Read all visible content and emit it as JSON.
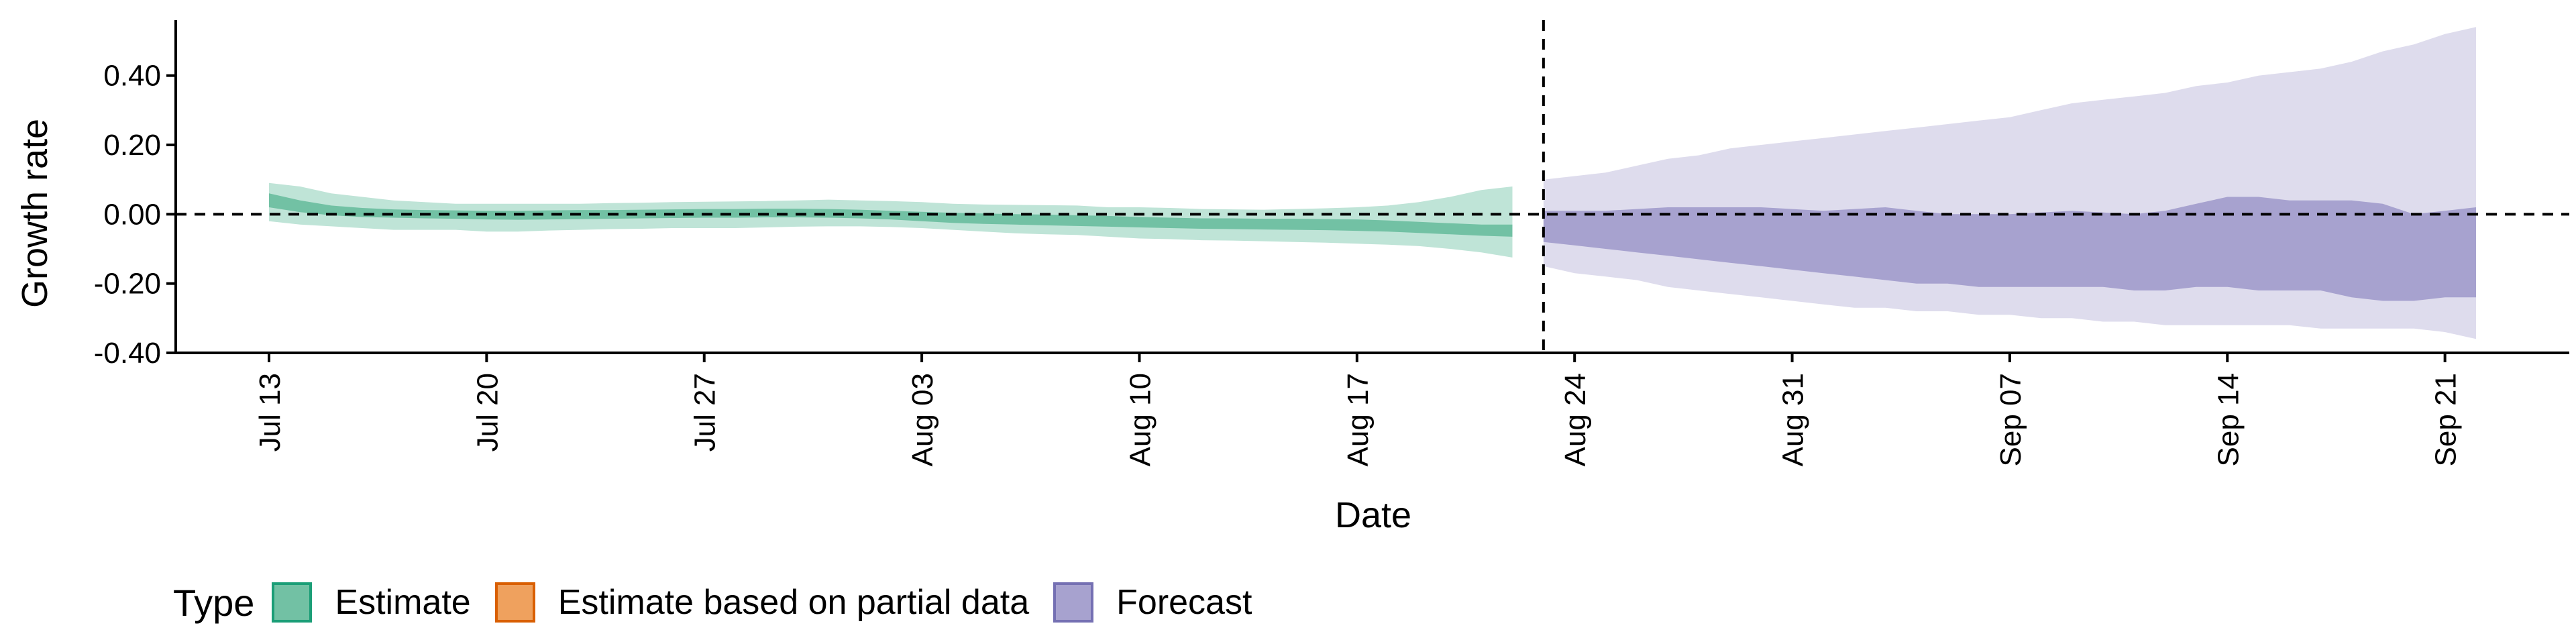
{
  "chart_data": {
    "type": "area",
    "ylabel": "Growth rate",
    "xlabel": "Date",
    "ylim": [
      -0.4,
      0.56
    ],
    "yticks": [
      "0.40",
      "0.20",
      "0.00",
      "-0.20",
      "-0.40"
    ],
    "ytick_values": [
      0.4,
      0.2,
      0.0,
      -0.2,
      -0.4
    ],
    "xlim": [
      "2020-07-10",
      "2020-09-25"
    ],
    "xticks": [
      "Jul 13",
      "Jul 20",
      "Jul 27",
      "Aug 03",
      "Aug 10",
      "Aug 17",
      "Aug 24",
      "Aug 31",
      "Sep 07",
      "Sep 14",
      "Sep 21"
    ],
    "xtick_dates": [
      "2020-07-13",
      "2020-07-20",
      "2020-07-27",
      "2020-08-03",
      "2020-08-10",
      "2020-08-17",
      "2020-08-24",
      "2020-08-31",
      "2020-09-07",
      "2020-09-14",
      "2020-09-21"
    ],
    "hline": 0,
    "vline": "2020-08-23",
    "grid": false,
    "legend_position": "bottom-left",
    "legend": {
      "title": "Type",
      "items": [
        {
          "label": "Estimate",
          "fill": "#72C1A4",
          "stroke": "#1B9E77"
        },
        {
          "label": "Estimate based on partial data",
          "fill": "#EFA15E",
          "stroke": "#D95F02"
        },
        {
          "label": "Forecast",
          "fill": "#A7A2CF",
          "stroke": "#7570B3"
        }
      ]
    },
    "series": [
      {
        "name": "Estimate",
        "outer_color": "#BFE4D7",
        "inner_color": "#72C1A4",
        "x": [
          "2020-07-13",
          "2020-07-14",
          "2020-07-15",
          "2020-07-16",
          "2020-07-17",
          "2020-07-18",
          "2020-07-19",
          "2020-07-20",
          "2020-07-21",
          "2020-07-22",
          "2020-07-23",
          "2020-07-24",
          "2020-07-25",
          "2020-07-26",
          "2020-07-27",
          "2020-07-28",
          "2020-07-29",
          "2020-07-30",
          "2020-07-31",
          "2020-08-01",
          "2020-08-02",
          "2020-08-03",
          "2020-08-04",
          "2020-08-05",
          "2020-08-06",
          "2020-08-07",
          "2020-08-08",
          "2020-08-09",
          "2020-08-10",
          "2020-08-11",
          "2020-08-12",
          "2020-08-13",
          "2020-08-14",
          "2020-08-15",
          "2020-08-16",
          "2020-08-17",
          "2020-08-18",
          "2020-08-19",
          "2020-08-20",
          "2020-08-21",
          "2020-08-22"
        ],
        "outer_upper": [
          0.09,
          0.08,
          0.06,
          0.05,
          0.04,
          0.035,
          0.03,
          0.03,
          0.03,
          0.03,
          0.03,
          0.032,
          0.033,
          0.035,
          0.036,
          0.037,
          0.038,
          0.04,
          0.042,
          0.04,
          0.038,
          0.035,
          0.03,
          0.028,
          0.027,
          0.026,
          0.025,
          0.02,
          0.02,
          0.018,
          0.015,
          0.014,
          0.013,
          0.015,
          0.017,
          0.02,
          0.025,
          0.035,
          0.05,
          0.07,
          0.08
        ],
        "outer_lower": [
          -0.02,
          -0.03,
          -0.035,
          -0.04,
          -0.045,
          -0.045,
          -0.045,
          -0.05,
          -0.05,
          -0.047,
          -0.045,
          -0.043,
          -0.042,
          -0.04,
          -0.04,
          -0.04,
          -0.038,
          -0.036,
          -0.035,
          -0.035,
          -0.037,
          -0.04,
          -0.045,
          -0.05,
          -0.055,
          -0.058,
          -0.06,
          -0.065,
          -0.07,
          -0.072,
          -0.075,
          -0.076,
          -0.078,
          -0.08,
          -0.082,
          -0.085,
          -0.088,
          -0.092,
          -0.1,
          -0.11,
          -0.125
        ],
        "inner_upper": [
          0.06,
          0.04,
          0.025,
          0.018,
          0.014,
          0.012,
          0.011,
          0.01,
          0.01,
          0.011,
          0.012,
          0.012,
          0.013,
          0.014,
          0.015,
          0.015,
          0.016,
          0.016,
          0.015,
          0.013,
          0.01,
          0.007,
          0.004,
          0.002,
          0.0,
          -0.001,
          -0.003,
          -0.005,
          -0.008,
          -0.01,
          -0.012,
          -0.012,
          -0.013,
          -0.013,
          -0.014,
          -0.015,
          -0.018,
          -0.022,
          -0.026,
          -0.03,
          -0.03
        ],
        "inner_lower": [
          0.02,
          0.006,
          -0.003,
          -0.008,
          -0.01,
          -0.012,
          -0.013,
          -0.015,
          -0.016,
          -0.015,
          -0.014,
          -0.013,
          -0.012,
          -0.011,
          -0.01,
          -0.01,
          -0.009,
          -0.009,
          -0.01,
          -0.012,
          -0.015,
          -0.02,
          -0.025,
          -0.028,
          -0.03,
          -0.032,
          -0.034,
          -0.036,
          -0.038,
          -0.04,
          -0.042,
          -0.043,
          -0.044,
          -0.045,
          -0.046,
          -0.048,
          -0.05,
          -0.054,
          -0.058,
          -0.062,
          -0.065
        ]
      },
      {
        "name": "Forecast",
        "outer_color": "#DEDCED",
        "inner_color": "#A7A2CF",
        "x": [
          "2020-08-23",
          "2020-08-24",
          "2020-08-25",
          "2020-08-26",
          "2020-08-27",
          "2020-08-28",
          "2020-08-29",
          "2020-08-30",
          "2020-08-31",
          "2020-09-01",
          "2020-09-02",
          "2020-09-03",
          "2020-09-04",
          "2020-09-05",
          "2020-09-06",
          "2020-09-07",
          "2020-09-08",
          "2020-09-09",
          "2020-09-10",
          "2020-09-11",
          "2020-09-12",
          "2020-09-13",
          "2020-09-14",
          "2020-09-15",
          "2020-09-16",
          "2020-09-17",
          "2020-09-18",
          "2020-09-19",
          "2020-09-20",
          "2020-09-21",
          "2020-09-22"
        ],
        "outer_upper": [
          0.1,
          0.11,
          0.12,
          0.14,
          0.16,
          0.17,
          0.19,
          0.2,
          0.21,
          0.22,
          0.23,
          0.24,
          0.25,
          0.26,
          0.27,
          0.28,
          0.3,
          0.32,
          0.33,
          0.34,
          0.35,
          0.37,
          0.38,
          0.4,
          0.41,
          0.42,
          0.44,
          0.47,
          0.49,
          0.52,
          0.54
        ],
        "outer_lower": [
          -0.15,
          -0.17,
          -0.18,
          -0.19,
          -0.21,
          -0.22,
          -0.23,
          -0.24,
          -0.25,
          -0.26,
          -0.27,
          -0.27,
          -0.28,
          -0.28,
          -0.29,
          -0.29,
          -0.3,
          -0.3,
          -0.31,
          -0.31,
          -0.32,
          -0.32,
          -0.32,
          -0.32,
          -0.32,
          -0.33,
          -0.33,
          -0.33,
          -0.33,
          -0.34,
          -0.36
        ],
        "inner_upper": [
          0.01,
          0.01,
          0.01,
          0.015,
          0.02,
          0.02,
          0.02,
          0.02,
          0.015,
          0.01,
          0.015,
          0.02,
          0.01,
          0.0,
          0.0,
          0.0,
          0.005,
          0.01,
          0.005,
          0.0,
          0.01,
          0.03,
          0.05,
          0.05,
          0.04,
          0.04,
          0.04,
          0.03,
          0.0,
          0.01,
          0.02
        ],
        "inner_lower": [
          -0.08,
          -0.09,
          -0.1,
          -0.11,
          -0.12,
          -0.13,
          -0.14,
          -0.15,
          -0.16,
          -0.17,
          -0.18,
          -0.19,
          -0.2,
          -0.2,
          -0.21,
          -0.21,
          -0.21,
          -0.21,
          -0.21,
          -0.22,
          -0.22,
          -0.21,
          -0.21,
          -0.22,
          -0.22,
          -0.22,
          -0.24,
          -0.25,
          -0.25,
          -0.24,
          -0.24
        ]
      }
    ]
  }
}
